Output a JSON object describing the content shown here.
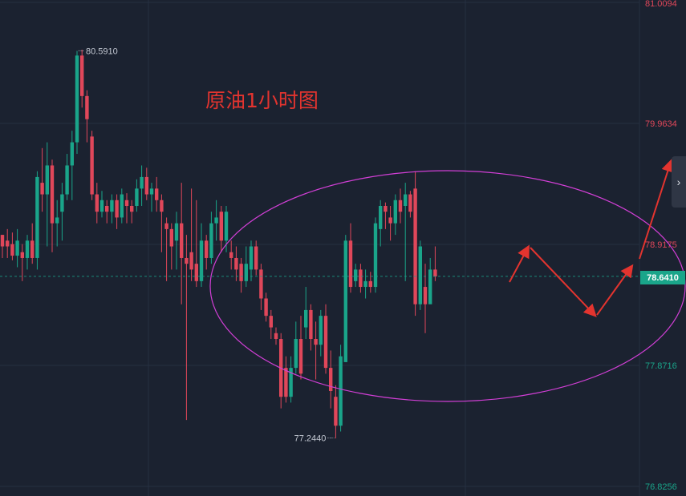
{
  "title": "原油1小时图",
  "colors": {
    "background": "#1b2230",
    "grid": "#263041",
    "up": "#1aa58a",
    "down": "#e0475a",
    "ellipse": "#d23fd6",
    "arrow": "#e3342f",
    "current": "#1aa58a"
  },
  "chart_data": {
    "type": "candlestick",
    "title": "原油1小时图",
    "y_axis": {
      "range": [
        76.8256,
        81.0094
      ],
      "tick_labels": [
        "81.0094",
        "79.9634",
        "78.9175",
        "77.8716",
        "76.8256"
      ],
      "tick_colors": [
        "#e0475a",
        "#e0475a",
        "#e0475a",
        "#1aa58a",
        "#1aa58a"
      ]
    },
    "current_price": "78.6410",
    "high_annotation": "80.5910",
    "low_annotation": "77.2440",
    "grid": true,
    "candles": [
      [
        79.0,
        78.9,
        79.0,
        78.8
      ],
      [
        78.95,
        78.9,
        79.05,
        78.8
      ],
      [
        78.92,
        78.82,
        79.02,
        78.78
      ],
      [
        78.82,
        78.95,
        79.05,
        78.72
      ],
      [
        78.85,
        78.8,
        78.92,
        78.6
      ],
      [
        78.8,
        78.95,
        79.0,
        78.7
      ],
      [
        78.95,
        78.8,
        79.1,
        78.75
      ],
      [
        78.8,
        79.5,
        79.55,
        78.7
      ],
      [
        79.45,
        79.35,
        79.75,
        79.2
      ],
      [
        79.35,
        79.6,
        79.8,
        78.9
      ],
      [
        79.6,
        79.1,
        79.65,
        78.85
      ],
      [
        79.1,
        79.15,
        79.3,
        78.9
      ],
      [
        79.2,
        79.35,
        79.45,
        78.95
      ],
      [
        79.35,
        79.6,
        79.7,
        79.3
      ],
      [
        79.6,
        79.8,
        79.9,
        79.3
      ],
      [
        79.8,
        80.55,
        80.59,
        79.7
      ],
      [
        80.55,
        80.2,
        80.6,
        80.1
      ],
      [
        80.2,
        80.0,
        80.25,
        79.8
      ],
      [
        79.85,
        79.35,
        79.9,
        79.3
      ],
      [
        79.35,
        79.2,
        79.45,
        79.1
      ],
      [
        79.2,
        79.3,
        79.38,
        79.15
      ],
      [
        79.25,
        79.2,
        79.3,
        79.1
      ],
      [
        79.2,
        79.3,
        79.35,
        79.1
      ],
      [
        79.3,
        79.15,
        79.35,
        79.05
      ],
      [
        79.15,
        79.35,
        79.4,
        79.1
      ],
      [
        79.3,
        79.25,
        79.36,
        79.1
      ],
      [
        79.25,
        79.2,
        79.3,
        79.1
      ],
      [
        79.25,
        79.4,
        79.48,
        79.2
      ],
      [
        79.4,
        79.5,
        79.6,
        79.25
      ],
      [
        79.5,
        79.35,
        79.58,
        79.3
      ],
      [
        79.35,
        79.4,
        79.45,
        79.2
      ],
      [
        79.4,
        79.3,
        79.5,
        79.2
      ],
      [
        79.3,
        79.2,
        79.35,
        78.85
      ],
      [
        79.1,
        79.05,
        79.15,
        78.6
      ],
      [
        79.05,
        78.9,
        79.1,
        78.7
      ],
      [
        78.95,
        79.1,
        79.2,
        78.7
      ],
      [
        79.1,
        78.8,
        79.45,
        78.4
      ],
      [
        78.8,
        78.75,
        79.0,
        77.4
      ],
      [
        78.85,
        78.7,
        79.4,
        78.6
      ],
      [
        78.75,
        78.6,
        79.3,
        78.55
      ],
      [
        78.6,
        78.95,
        79.1,
        78.55
      ],
      [
        78.95,
        78.8,
        79.0,
        78.7
      ],
      [
        78.8,
        79.1,
        79.2,
        78.75
      ],
      [
        79.1,
        79.15,
        79.3,
        78.95
      ],
      [
        79.2,
        78.95,
        79.25,
        78.85
      ],
      [
        78.95,
        79.2,
        79.25,
        78.85
      ],
      [
        78.85,
        78.8,
        78.95,
        78.7
      ],
      [
        78.8,
        78.7,
        78.9,
        78.6
      ],
      [
        78.75,
        78.6,
        78.8,
        78.5
      ],
      [
        78.6,
        78.75,
        78.9,
        78.55
      ],
      [
        78.7,
        78.9,
        78.95,
        78.6
      ],
      [
        78.9,
        78.7,
        78.95,
        78.65
      ],
      [
        78.7,
        78.45,
        78.75,
        78.35
      ],
      [
        78.45,
        78.3,
        78.5,
        78.25
      ],
      [
        78.3,
        78.2,
        78.35,
        78.1
      ],
      [
        78.15,
        78.1,
        78.2,
        78.05
      ],
      [
        78.1,
        77.6,
        78.15,
        77.5
      ],
      [
        77.85,
        77.6,
        77.95,
        77.55
      ],
      [
        77.6,
        77.85,
        77.95,
        77.55
      ],
      [
        77.85,
        78.1,
        78.25,
        77.8
      ],
      [
        78.1,
        77.8,
        78.3,
        77.75
      ],
      [
        78.2,
        78.35,
        78.55,
        78.1
      ],
      [
        78.35,
        78.1,
        78.4,
        78.0
      ],
      [
        78.1,
        78.05,
        78.25,
        77.75
      ],
      [
        78.05,
        78.3,
        78.35,
        77.95
      ],
      [
        78.3,
        77.85,
        78.4,
        77.8
      ],
      [
        77.85,
        77.65,
        78.0,
        77.5
      ],
      [
        77.6,
        77.35,
        77.7,
        77.24
      ],
      [
        77.35,
        77.95,
        78.05,
        77.3
      ],
      [
        77.9,
        78.95,
        79.0,
        77.9
      ],
      [
        78.95,
        78.55,
        79.1,
        78.5
      ],
      [
        78.6,
        78.7,
        78.75,
        78.55
      ],
      [
        78.7,
        78.55,
        78.75,
        78.5
      ],
      [
        78.55,
        78.6,
        78.7,
        78.45
      ],
      [
        78.6,
        78.55,
        78.68,
        78.5
      ],
      [
        78.55,
        79.1,
        79.15,
        78.5
      ],
      [
        79.05,
        79.25,
        79.3,
        78.9
      ],
      [
        79.25,
        79.2,
        79.28,
        79.05
      ],
      [
        79.15,
        79.1,
        79.25,
        78.95
      ],
      [
        79.1,
        79.3,
        79.35,
        79.0
      ],
      [
        79.3,
        79.2,
        79.4,
        79.1
      ],
      [
        79.25,
        79.35,
        79.45,
        78.6
      ],
      [
        79.35,
        79.2,
        79.38,
        79.15
      ],
      [
        79.4,
        78.4,
        79.55,
        78.3
      ],
      [
        78.4,
        78.9,
        78.95,
        78.35
      ],
      [
        78.55,
        78.4,
        78.75,
        78.15
      ],
      [
        78.4,
        78.7,
        78.8,
        78.5
      ],
      [
        78.7,
        78.64,
        78.9,
        78.6
      ]
    ]
  }
}
